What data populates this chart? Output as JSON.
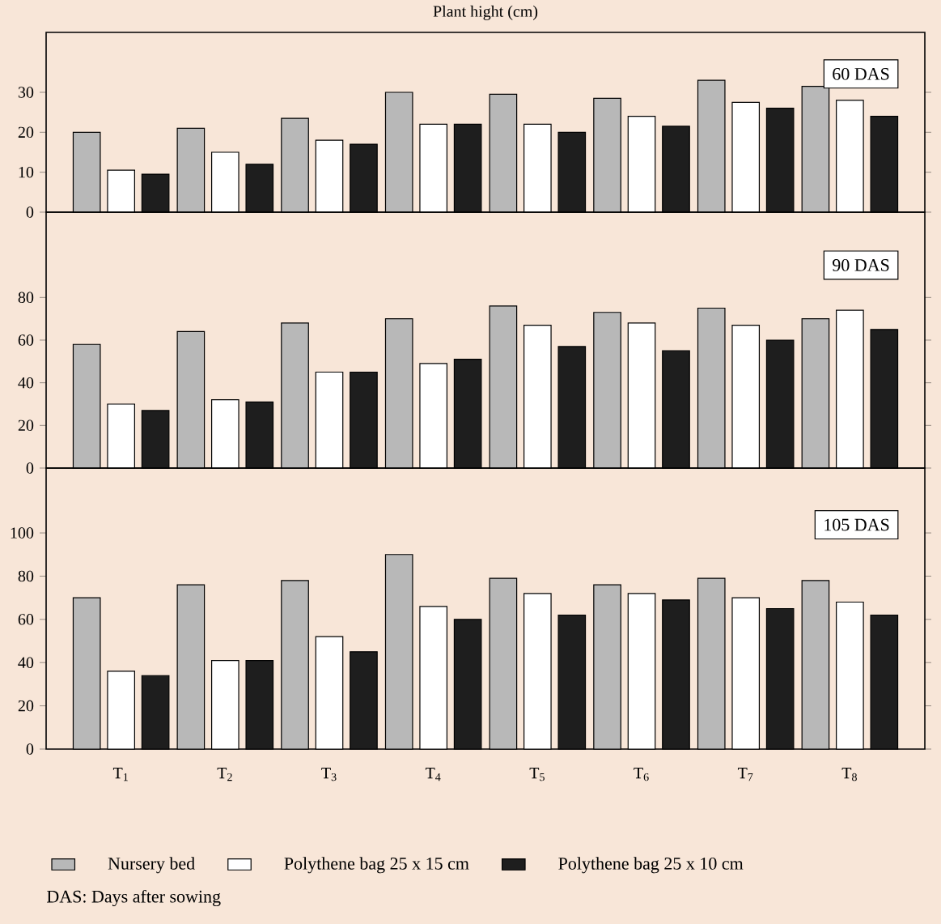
{
  "chart_data": [
    {
      "type": "bar",
      "title": "Plant hight (cm)",
      "categories": [
        null,
        null,
        null,
        null,
        null,
        null,
        null,
        null
      ],
      "ylim": [
        0,
        45
      ],
      "yticks": [
        0,
        10,
        20,
        30
      ],
      "tick_labels": "y",
      "annotations": [
        "60 DAS"
      ],
      "series": [
        {
          "color": "#b8b8b8",
          "values": [
            20,
            21,
            23.5,
            30,
            29.5,
            28.5,
            33,
            31.5
          ]
        },
        {
          "color": "#ffffff",
          "values": [
            10.5,
            15,
            18,
            22,
            22,
            24,
            27.5,
            28
          ]
        },
        {
          "color": "#1e1e1e",
          "values": [
            9.5,
            12,
            17,
            22,
            20,
            21.5,
            26,
            24
          ]
        }
      ]
    },
    {
      "type": "bar",
      "categories": [
        null,
        null,
        null,
        null,
        null,
        null,
        null,
        null
      ],
      "ylim": [
        0,
        120
      ],
      "yticks": [
        0,
        20,
        40,
        60,
        80
      ],
      "tick_labels": "y",
      "annotations": [
        "90 DAS"
      ],
      "series": [
        {
          "color": "#b8b8b8",
          "values": [
            58,
            64,
            68,
            70,
            76,
            73,
            75,
            70
          ]
        },
        {
          "color": "#ffffff",
          "values": [
            30,
            32,
            45,
            49,
            67,
            68,
            67,
            74
          ]
        },
        {
          "color": "#1e1e1e",
          "values": [
            27,
            31,
            45,
            51,
            57,
            55,
            60,
            65
          ]
        }
      ]
    },
    {
      "type": "bar",
      "categories": [
        "T$_{1}$",
        "T$_{2}$",
        "T$_{3}$",
        "T$_{4}$",
        "T$_{5}$",
        "T$_{6}$",
        "T$_{7}$",
        "T$_{8}$"
      ],
      "ylim": [
        0,
        130
      ],
      "yticks": [
        0,
        20,
        40,
        60,
        80,
        100
      ],
      "legend": "bottom",
      "annotations": [
        "105 DAS",
        "DAS: Days after sowing"
      ],
      "series": [
        {
          "name": "Nursery bed",
          "color": "#b8b8b8",
          "values": [
            70,
            76,
            78,
            90,
            79,
            76,
            79,
            78
          ]
        },
        {
          "name": "Polythene bag 25 x 15 cm",
          "color": "#ffffff",
          "values": [
            36,
            41,
            52,
            66,
            72,
            72,
            70,
            68
          ]
        },
        {
          "name": "Polythene bag 25 x 10 cm",
          "color": "#1e1e1e",
          "values": [
            34,
            41,
            45,
            60,
            62,
            69,
            65,
            62
          ]
        }
      ]
    }
  ]
}
